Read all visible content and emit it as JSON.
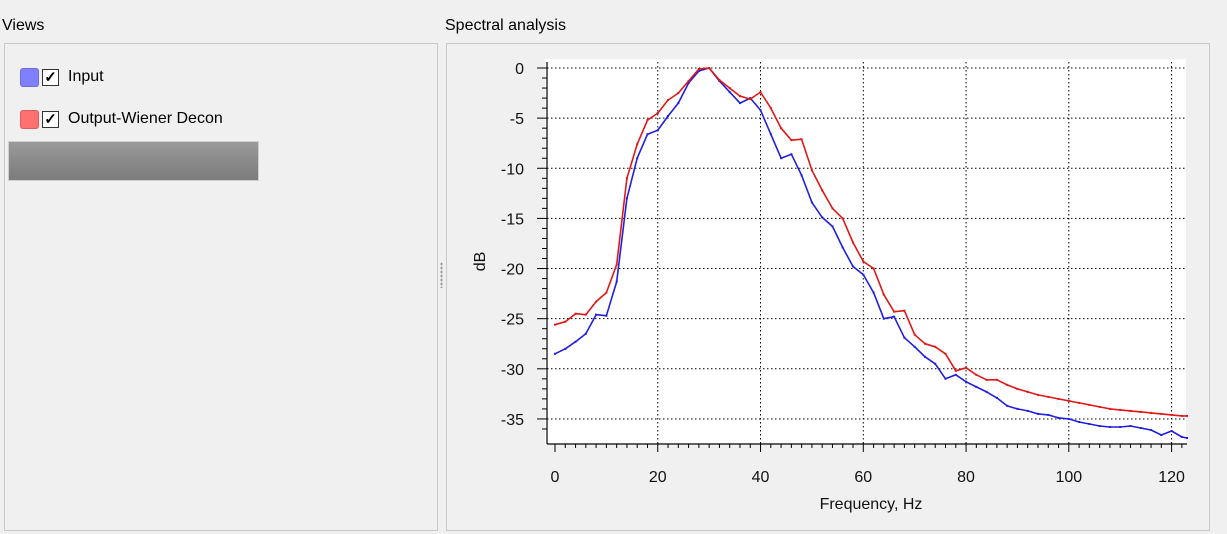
{
  "views": {
    "title": "Views",
    "items": [
      {
        "label": "Input",
        "color": "#8080ff",
        "checked": true,
        "check_mark": "✓"
      },
      {
        "label": "Output-Wiener Decon",
        "color": "#ff7070",
        "checked": true,
        "check_mark": "✓"
      }
    ]
  },
  "spectral": {
    "title": "Spectral analysis"
  },
  "chart_data": {
    "type": "line",
    "xlabel": "Frequency, Hz",
    "ylabel": "dB",
    "xlim": [
      0,
      123
    ],
    "ylim": [
      -37,
      0
    ],
    "xticks": [
      0,
      20,
      40,
      60,
      80,
      100,
      120
    ],
    "yticks": [
      0,
      -5,
      -10,
      -15,
      -20,
      -25,
      -30,
      -35
    ],
    "grid": true,
    "series": [
      {
        "name": "Input",
        "color": "#2020e0",
        "x": [
          0,
          2,
          4,
          6,
          8,
          10,
          12,
          14,
          16,
          18,
          20,
          22,
          24,
          26,
          28,
          30,
          32,
          34,
          36,
          38,
          40,
          42,
          44,
          46,
          48,
          50,
          52,
          54,
          56,
          58,
          60,
          62,
          64,
          66,
          68,
          70,
          72,
          74,
          76,
          78,
          80,
          82,
          84,
          86,
          88,
          90,
          92,
          94,
          96,
          98,
          100,
          102,
          104,
          106,
          108,
          110,
          112,
          114,
          116,
          118,
          120,
          122,
          123
        ],
        "y": [
          -28.5,
          -28,
          -27.3,
          -26.5,
          -24.6,
          -24.7,
          -21.3,
          -13,
          -9,
          -6.6,
          -6.2,
          -4.8,
          -3.5,
          -1.5,
          -0.3,
          0,
          -1.3,
          -2.4,
          -3.5,
          -3,
          -4.2,
          -6.6,
          -9,
          -8.6,
          -10.7,
          -13.4,
          -14.9,
          -15.8,
          -17.9,
          -19.8,
          -20.6,
          -22.4,
          -25,
          -24.8,
          -26.9,
          -27.8,
          -28.8,
          -29.5,
          -31,
          -30.6,
          -31.3,
          -31.8,
          -32.3,
          -32.9,
          -33.7,
          -34,
          -34.2,
          -34.5,
          -34.6,
          -34.9,
          -35,
          -35.3,
          -35.5,
          -35.7,
          -35.8,
          -35.8,
          -35.7,
          -35.9,
          -36.1,
          -36.6,
          -36.2,
          -36.8,
          -36.9
        ]
      },
      {
        "name": "Output-Wiener Decon",
        "color": "#e01818",
        "x": [
          0,
          2,
          4,
          6,
          8,
          10,
          12,
          14,
          16,
          18,
          20,
          22,
          24,
          26,
          28,
          30,
          32,
          34,
          36,
          38,
          40,
          42,
          44,
          46,
          48,
          50,
          52,
          54,
          56,
          58,
          60,
          62,
          64,
          66,
          68,
          70,
          72,
          74,
          76,
          78,
          80,
          82,
          84,
          86,
          88,
          90,
          92,
          94,
          96,
          98,
          100,
          102,
          104,
          106,
          108,
          110,
          112,
          114,
          116,
          118,
          120,
          122,
          123
        ],
        "y": [
          -25.6,
          -25.3,
          -24.5,
          -24.6,
          -23.3,
          -22.4,
          -19.6,
          -11,
          -7.6,
          -5.2,
          -4.5,
          -3.2,
          -2.5,
          -1.3,
          -0.1,
          0,
          -1.2,
          -2,
          -2.8,
          -3.1,
          -2.4,
          -4,
          -6,
          -7.2,
          -7.1,
          -10.2,
          -12.2,
          -14,
          -15,
          -17.4,
          -19.3,
          -20,
          -22.6,
          -24.3,
          -24.2,
          -26.6,
          -27.5,
          -27.8,
          -28.5,
          -30.2,
          -29.9,
          -30.6,
          -31.1,
          -31.1,
          -31.6,
          -32,
          -32.3,
          -32.6,
          -32.8,
          -33,
          -33.2,
          -33.4,
          -33.6,
          -33.8,
          -34,
          -34.1,
          -34.2,
          -34.3,
          -34.4,
          -34.5,
          -34.6,
          -34.7,
          -34.7
        ]
      }
    ]
  }
}
